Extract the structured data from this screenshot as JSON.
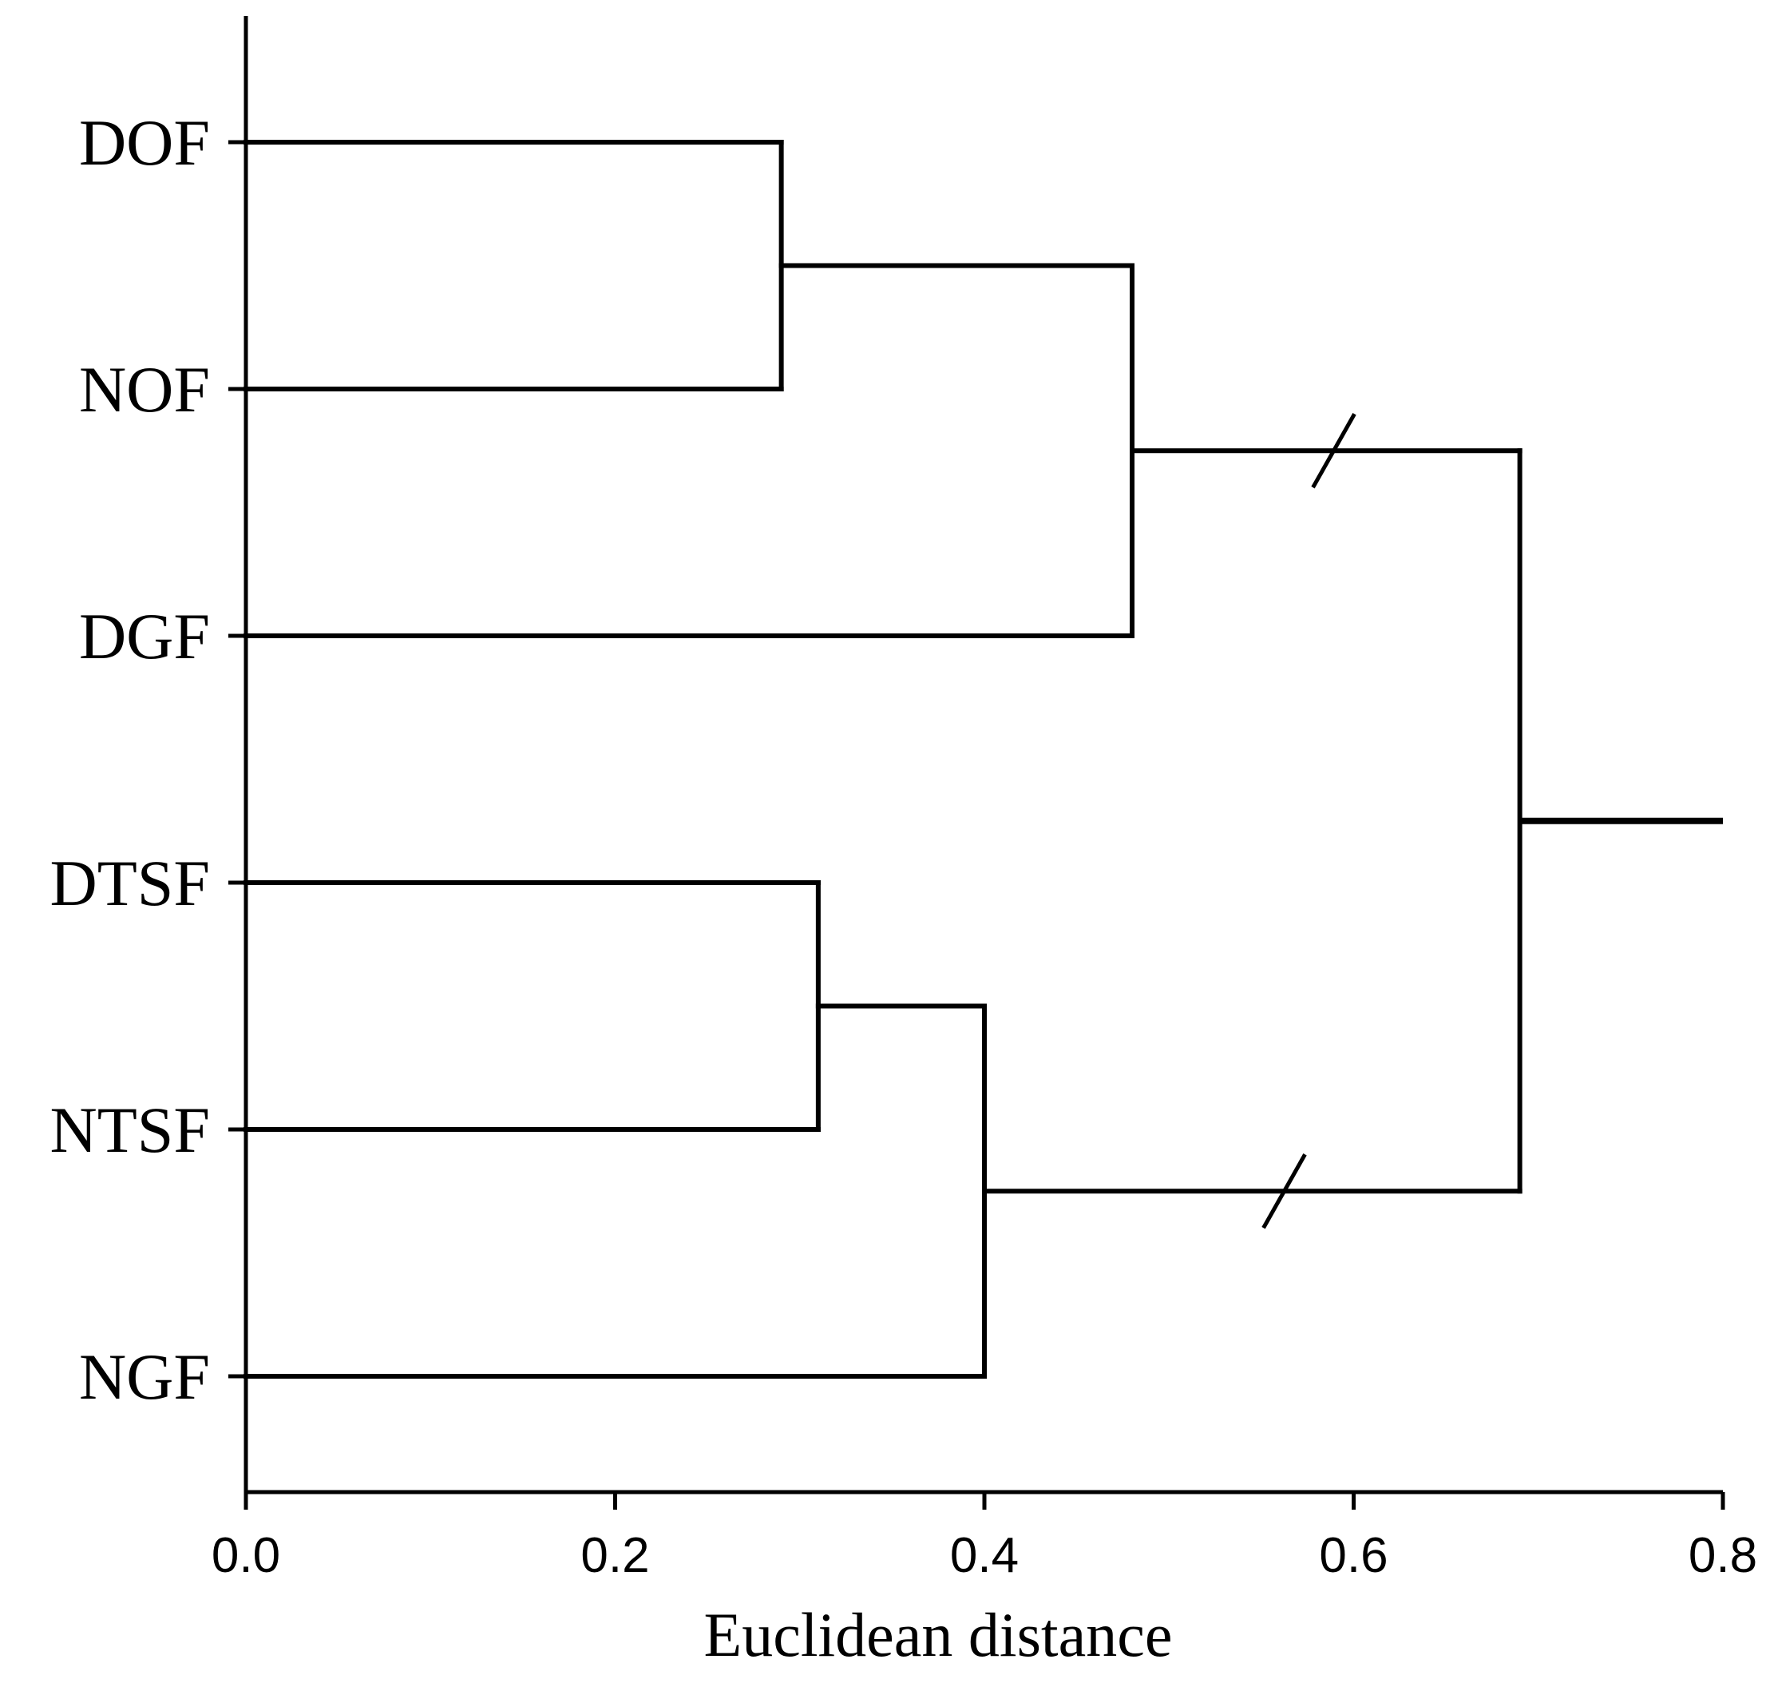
{
  "chart_data": {
    "type": "dendrogram",
    "orientation": "horizontal",
    "xlabel": "Euclidean distance",
    "xlim": [
      0.0,
      0.8
    ],
    "xticks": [
      "0.0",
      "0.2",
      "0.4",
      "0.6",
      "0.8"
    ],
    "leaves": [
      "DOF",
      "NOF",
      "DGF",
      "DTSF",
      "NTSF",
      "NGF"
    ],
    "merges": [
      {
        "id": "c1",
        "children": [
          "DOF",
          "NOF"
        ],
        "height": 0.29
      },
      {
        "id": "c2",
        "children": [
          "c1",
          "DGF"
        ],
        "height": 0.48
      },
      {
        "id": "c3",
        "children": [
          "DTSF",
          "NTSF"
        ],
        "height": 0.31
      },
      {
        "id": "c4",
        "children": [
          "c3",
          "NGF"
        ],
        "height": 0.4
      },
      {
        "id": "root",
        "children": [
          "c2",
          "c4"
        ],
        "height": 0.69
      }
    ],
    "axis_break": true,
    "grid": false,
    "legend": "none"
  }
}
